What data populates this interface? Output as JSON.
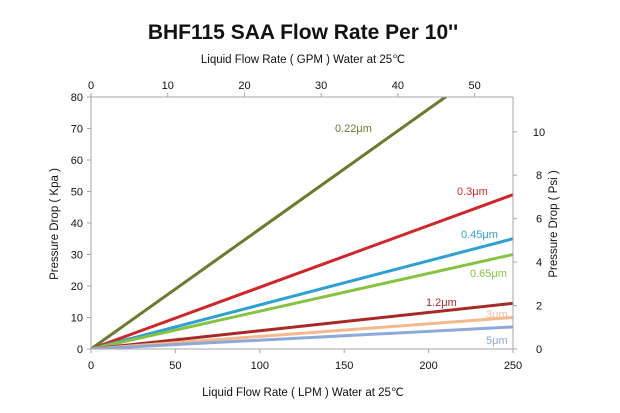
{
  "chart_data": {
    "type": "line",
    "title": "BHF115 SAA Flow Rate Per 10''",
    "x_bottom": {
      "label": "Liquid Flow Rate ( LPM ) Water at 25℃",
      "range": [
        0,
        250
      ],
      "ticks": [
        "0",
        "50",
        "100",
        "150",
        "200",
        "250"
      ]
    },
    "x_top": {
      "label": "Liquid Flow Rate ( GPM ) Water at 25℃",
      "range": [
        0,
        55
      ],
      "ticks": [
        "0",
        "10",
        "20",
        "30",
        "40",
        "50"
      ]
    },
    "y_left": {
      "label": "Pressure Drop ( Kpa )",
      "range": [
        0,
        80
      ],
      "ticks": [
        "0",
        "10",
        "20",
        "30",
        "40",
        "50",
        "60",
        "70",
        "80"
      ]
    },
    "y_right": {
      "label": "Pressure Drop ( Psi )",
      "range": [
        0,
        11.6
      ],
      "ticks": [
        "0",
        "2",
        "4",
        "6",
        "8",
        "10"
      ]
    },
    "grid": false,
    "series": [
      {
        "name": "0.22μm",
        "color": "#6b7a2e",
        "x": [
          0,
          210
        ],
        "y": [
          0,
          80
        ]
      },
      {
        "name": "0.3μm",
        "color": "#d0262b",
        "x": [
          0,
          250
        ],
        "y": [
          0,
          49
        ]
      },
      {
        "name": "0.45μm",
        "color": "#2fa0d2",
        "x": [
          0,
          250
        ],
        "y": [
          0,
          35
        ]
      },
      {
        "name": "0.65μm",
        "color": "#86c341",
        "x": [
          0,
          250
        ],
        "y": [
          0,
          30
        ]
      },
      {
        "name": "1.2μm",
        "color": "#a62a26",
        "x": [
          0,
          250
        ],
        "y": [
          0,
          14.5
        ]
      },
      {
        "name": "3μm",
        "color": "#f2b98f",
        "x": [
          0,
          250
        ],
        "y": [
          0,
          10
        ]
      },
      {
        "name": "5μm",
        "color": "#8ea9d9",
        "x": [
          0,
          250
        ],
        "y": [
          0,
          7
        ]
      }
    ]
  }
}
